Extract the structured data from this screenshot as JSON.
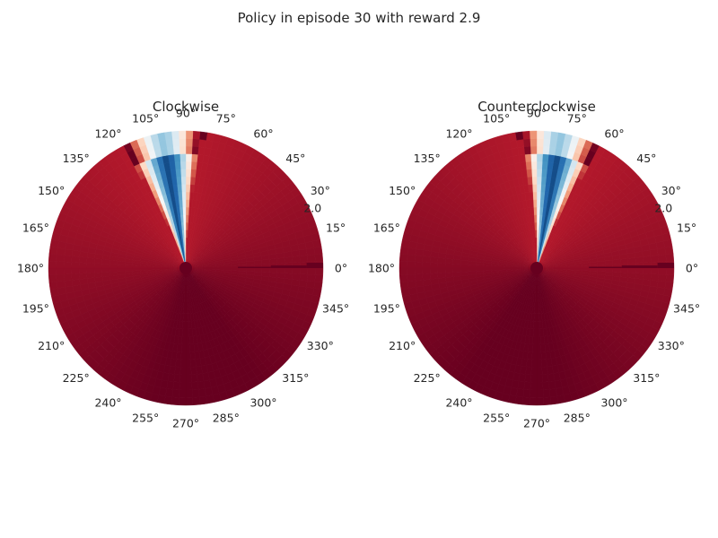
{
  "figure_title": "Policy in episode 30 with reward 2.9",
  "chart_data": [
    {
      "type": "heatmap",
      "projection": "polar",
      "title": "Clockwise",
      "theta_tick_labels": [
        "0°",
        "15°",
        "30°",
        "45°",
        "60°",
        "75°",
        "90°",
        "105°",
        "120°",
        "135°",
        "150°",
        "165°",
        "180°",
        "195°",
        "210°",
        "225°",
        "240°",
        "255°",
        "270°",
        "285°",
        "300°",
        "315°",
        "330°",
        "345°"
      ],
      "r_tick_labels": [
        "2.0"
      ],
      "r_range": [
        0,
        2.0
      ],
      "colormap": "RdBu",
      "low_band": {
        "center_deg": 100,
        "half_width_deg": 18,
        "min_value": 0.0
      },
      "grid": false
    },
    {
      "type": "heatmap",
      "projection": "polar",
      "title": "Counterclockwise",
      "theta_tick_labels": [
        "0°",
        "15°",
        "30°",
        "45°",
        "60°",
        "75°",
        "90°",
        "105°",
        "120°",
        "135°",
        "150°",
        "165°",
        "180°",
        "195°",
        "210°",
        "225°",
        "240°",
        "255°",
        "270°",
        "285°",
        "300°",
        "315°",
        "330°",
        "345°"
      ],
      "r_tick_labels": [
        "2.0"
      ],
      "r_range": [
        0,
        2.0
      ],
      "colormap": "RdBu",
      "low_band": {
        "center_deg": 80,
        "half_width_deg": 18,
        "min_value": 0.0
      },
      "grid": false
    }
  ],
  "colors": {
    "deep_red": "#67001f",
    "red": "#b2182b",
    "white": "#f7f7f7",
    "blue": "#2166ac",
    "deep_blue": "#053061"
  }
}
